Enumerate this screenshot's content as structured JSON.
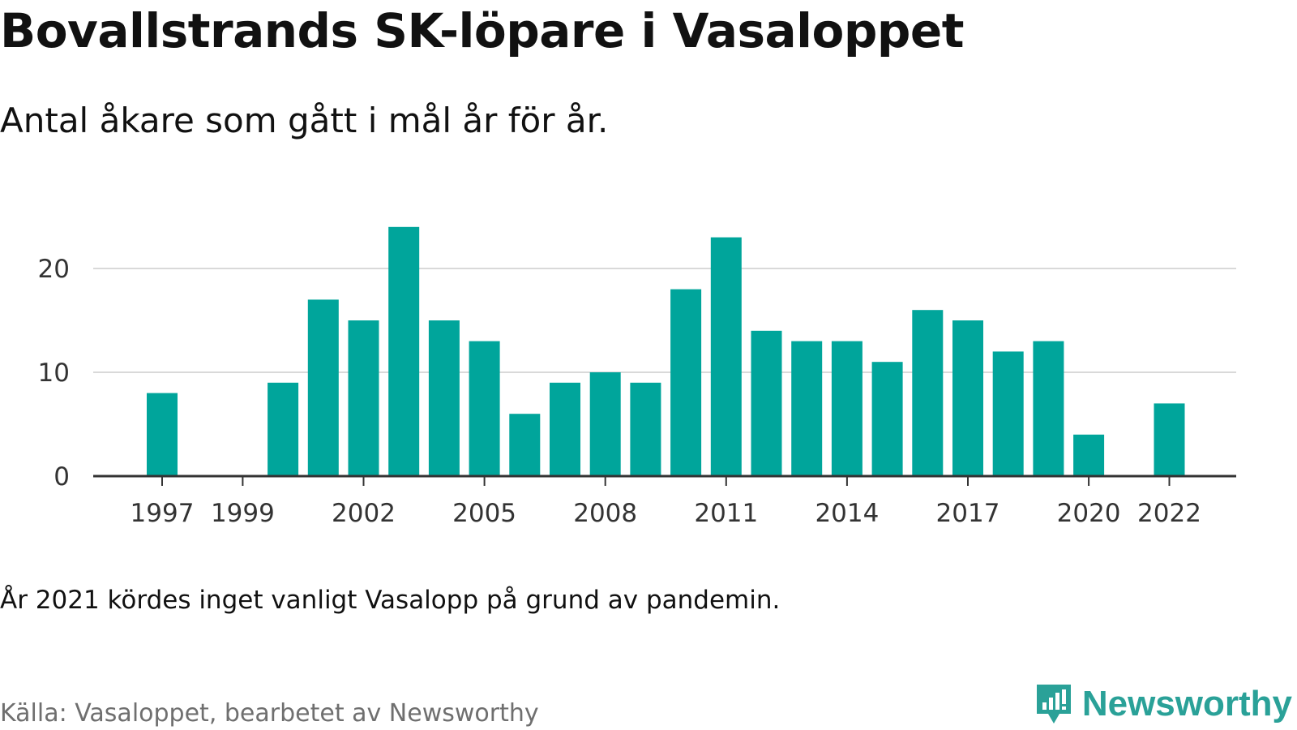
{
  "title": "Bovallstrands SK-löpare i Vasaloppet",
  "subtitle": "Antal åkare som gått i mål år för år.",
  "note": "År 2021 kördes inget vanligt Vasalopp på grund av pandemin.",
  "source": "Källa: Vasaloppet, bearbetet av Newsworthy",
  "brand": "Newsworthy",
  "colors": {
    "bar": "#00a59b",
    "grid": "#d9d9d9",
    "axis": "#333333",
    "brand": "#2aa198"
  },
  "chart_data": {
    "type": "bar",
    "categories": [
      "1997",
      "1998",
      "1999",
      "2000",
      "2001",
      "2002",
      "2003",
      "2004",
      "2005",
      "2006",
      "2007",
      "2008",
      "2009",
      "2010",
      "2011",
      "2012",
      "2013",
      "2014",
      "2015",
      "2016",
      "2017",
      "2018",
      "2019",
      "2020",
      "2021",
      "2022"
    ],
    "values": [
      8,
      0,
      0,
      9,
      17,
      15,
      24,
      15,
      13,
      6,
      9,
      10,
      9,
      18,
      23,
      14,
      13,
      13,
      11,
      16,
      15,
      12,
      13,
      4,
      0,
      7
    ],
    "x_tick_labels": [
      "1997",
      "1999",
      "2002",
      "2005",
      "2008",
      "2011",
      "2014",
      "2017",
      "2020",
      "2022"
    ],
    "y_ticks": [
      0,
      10,
      20
    ],
    "ylim": [
      0,
      25
    ],
    "xlabel": "",
    "ylabel": "",
    "grid": true,
    "legend": "none"
  }
}
